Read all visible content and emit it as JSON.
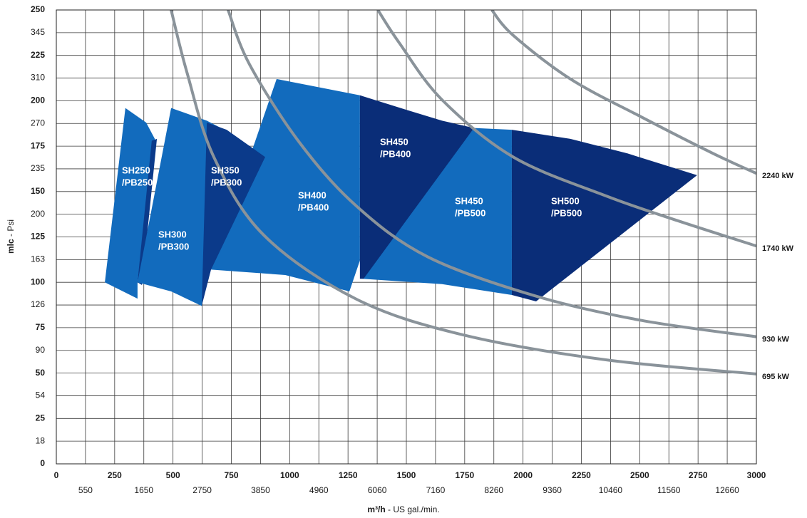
{
  "chart_data": {
    "type": "area-map",
    "xlabel": {
      "bold": "m³/h",
      "rest": "- US gal./min."
    },
    "ylabel": {
      "bold": "mlc",
      "rest": "- Psi"
    },
    "xlim": [
      0,
      3000
    ],
    "ylim": [
      0,
      250
    ],
    "xticks": [
      0,
      250,
      500,
      750,
      1000,
      1250,
      1500,
      1750,
      2000,
      2250,
      2500,
      2750,
      3000
    ],
    "xticks_secondary": [
      {
        "value": 125,
        "label": "550"
      },
      {
        "value": 375,
        "label": "1650"
      },
      {
        "value": 625,
        "label": "2750"
      },
      {
        "value": 875,
        "label": "3850"
      },
      {
        "value": 1125,
        "label": "4960"
      },
      {
        "value": 1375,
        "label": "6060"
      },
      {
        "value": 1625,
        "label": "7160"
      },
      {
        "value": 1875,
        "label": "8260"
      },
      {
        "value": 2125,
        "label": "9360"
      },
      {
        "value": 2375,
        "label": "10460"
      },
      {
        "value": 2625,
        "label": "11560"
      },
      {
        "value": 2875,
        "label": "12660"
      }
    ],
    "yticks": [
      0,
      25,
      50,
      75,
      100,
      125,
      150,
      175,
      200,
      225,
      250
    ],
    "yticks_secondary": [
      {
        "value": 12.5,
        "label": "18"
      },
      {
        "value": 37.5,
        "label": "54"
      },
      {
        "value": 62.5,
        "label": "90"
      },
      {
        "value": 87.5,
        "label": "126"
      },
      {
        "value": 112.5,
        "label": "163"
      },
      {
        "value": 137.5,
        "label": "200"
      },
      {
        "value": 162.5,
        "label": "235"
      },
      {
        "value": 187.5,
        "label": "270"
      },
      {
        "value": 212.5,
        "label": "310"
      },
      {
        "value": 237.5,
        "label": "345"
      }
    ],
    "grid": true,
    "regions": [
      {
        "label": [
          "SH250",
          "/PB250"
        ],
        "color": "#126bbd",
        "x": [
          208,
          296,
          385,
          422,
          348,
          348
        ],
        "y": [
          100,
          196,
          188,
          179,
          100,
          91
        ]
      },
      {
        "color": "#0b3a8a",
        "x": [
          348,
          409,
          431,
          367
        ],
        "y": [
          100,
          178,
          179,
          98.5
        ]
      },
      {
        "label": [
          "SH300",
          "/PB300"
        ],
        "color": "#126bbd",
        "x": [
          348,
          492,
          645,
          736,
          623,
          492
        ],
        "y": [
          100,
          196,
          189,
          183,
          87,
          95
        ]
      },
      {
        "label": [
          "SH400",
          "/PB400"
        ],
        "color": "#126bbd",
        "x": [
          663,
          944,
          1301,
          1301,
          1256,
          981
        ],
        "y": [
          107,
          212,
          203,
          112,
          95,
          104
        ]
      },
      {
        "label": [
          "SH350",
          "/PB300"
        ],
        "color": "#0b3a8a",
        "x": [
          645,
          730,
          895,
          663,
          623
        ],
        "y": [
          188,
          184,
          169,
          107,
          87
        ]
      },
      {
        "label": [
          "SH450",
          "/PB500"
        ],
        "color": "#126bbd",
        "x": [
          1301,
          1790,
          1952,
          1952,
          1653
        ],
        "y": [
          102,
          185,
          184,
          93,
          99
        ]
      },
      {
        "label": [
          "SH450",
          "/PB400"
        ],
        "color": "#0a2d78",
        "x": [
          1301,
          1500,
          1653,
          1790,
          1317,
          1301
        ],
        "y": [
          203,
          195,
          189,
          185,
          102,
          102
        ]
      },
      {
        "label": [
          "SH500",
          "/PB500"
        ],
        "color": "#0a2d78",
        "x": [
          1952,
          2203,
          2447,
          2746,
          2056,
          1952
        ],
        "y": [
          184,
          179,
          171,
          159,
          89.5,
          93
        ]
      }
    ],
    "series": [
      {
        "name": "695 kW",
        "color": "#8a939a",
        "x": [
          492,
          559,
          675,
          889,
          1286,
          1744,
          2355,
          3000
        ],
        "values": [
          250,
          216,
          169,
          126,
          90.7,
          71,
          57.3,
          49.5
        ]
      },
      {
        "name": "930 kW",
        "color": "#8a939a",
        "x": [
          736,
          828,
          1042,
          1286,
          1592,
          2050,
          2508,
          3000
        ],
        "values": [
          250,
          220,
          177,
          142,
          114,
          92.6,
          79,
          70
        ]
      },
      {
        "name": "1740 kW",
        "color": "#8a939a",
        "x": [
          1378,
          1469,
          1653,
          1958,
          2355,
          2661,
          3000
        ],
        "values": [
          250,
          232,
          200.5,
          169,
          147.6,
          134,
          120
        ]
      },
      {
        "name": "2240 kW",
        "color": "#8a939a",
        "x": [
          1866,
          1958,
          2203,
          2508,
          2814,
          3000
        ],
        "values": [
          250,
          236,
          212,
          191,
          171,
          160
        ]
      }
    ]
  }
}
